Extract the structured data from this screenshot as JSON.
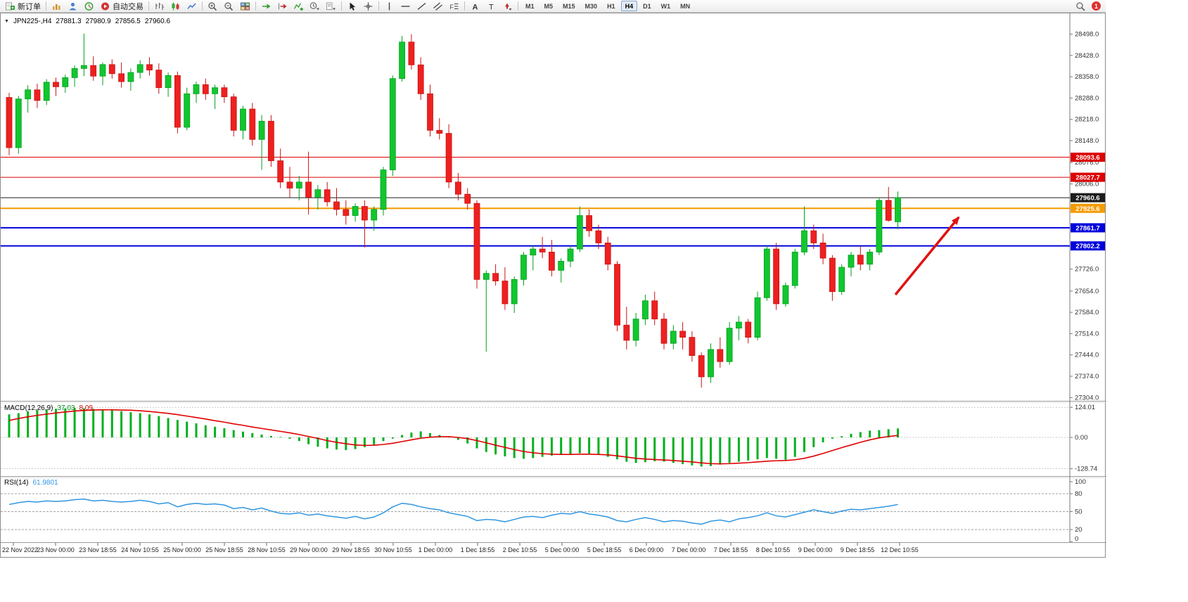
{
  "toolbar": {
    "new_order_label": "新订单",
    "autotrading_label": "自动交易",
    "icon_groups": {
      "charts": [
        "new-chart-icon",
        "profiles-icon",
        "market-watch-icon"
      ],
      "chart_types": [
        "bar-chart-icon",
        "candlestick-chart-icon",
        "line-chart-icon"
      ],
      "zoom": [
        "zoom-in-icon",
        "zoom-out-icon",
        "tile-windows-icon"
      ],
      "chart_tools": [
        "auto-scroll-icon",
        "chart-shift-icon",
        "indicators-add-icon",
        "periods-icon",
        "templates-icon"
      ],
      "pointer_tools": [
        "cursor-icon",
        "crosshair-icon"
      ],
      "line_tools": [
        "vertical-line-icon",
        "horizontal-line-icon",
        "trendline-icon",
        "channel-icon",
        "fibonacci-icon"
      ],
      "annotation_tools": [
        "text-icon",
        "label-icon",
        "arrows-icon"
      ]
    },
    "timeframes": [
      "M1",
      "M5",
      "M15",
      "M30",
      "H1",
      "H4",
      "D1",
      "W1",
      "MN"
    ],
    "active_timeframe": "H4",
    "notification_count": "1"
  },
  "chart_header": {
    "symbol_period": "JPN225-,H4",
    "open": "27881.3",
    "high": "27980.9",
    "low": "27856.5",
    "close": "27960.6"
  },
  "chart_data": {
    "type": "candlestick",
    "symbol": "JPN225-",
    "timeframe": "H4",
    "price_axis_ticks": [
      28498,
      28428,
      28358,
      28288,
      28218,
      28148,
      28076,
      28006,
      27726,
      27654,
      27584,
      27514,
      27444,
      27374,
      27304
    ],
    "levels": [
      {
        "price": 28093.6,
        "color": "#dd0000",
        "width": 1
      },
      {
        "price": 28027.7,
        "color": "#dd0000",
        "width": 1
      },
      {
        "price": 27960.6,
        "color": "#1c1c1c",
        "width": 1
      },
      {
        "price": 27925.6,
        "color": "#f59a00",
        "width": 2
      },
      {
        "price": 27861.7,
        "color": "#0000dd",
        "width": 2
      },
      {
        "price": 27802.2,
        "color": "#0000dd",
        "width": 2
      }
    ],
    "time_labels": [
      "22 Nov 2022",
      "23 Nov 00:00",
      "23 Nov 18:55",
      "24 Nov 10:55",
      "25 Nov 00:00",
      "25 Nov 18:55",
      "28 Nov 10:55",
      "29 Nov 00:00",
      "29 Nov 18:55",
      "30 Nov 10:55",
      "1 Dec 00:00",
      "1 Dec 18:55",
      "2 Dec 10:55",
      "5 Dec 00:00",
      "5 Dec 18:55",
      "6 Dec 09:00",
      "7 Dec 00:00",
      "7 Dec 18:55",
      "8 Dec 10:55",
      "9 Dec 00:00",
      "9 Dec 18:55",
      "12 Dec 10:55"
    ],
    "candles_ohlc": [
      [
        28290,
        28305,
        28100,
        28125
      ],
      [
        28125,
        28295,
        28105,
        28285
      ],
      [
        28285,
        28330,
        28240,
        28315
      ],
      [
        28315,
        28335,
        28255,
        28280
      ],
      [
        28280,
        28350,
        28265,
        28340
      ],
      [
        28340,
        28355,
        28295,
        28325
      ],
      [
        28325,
        28365,
        28305,
        28355
      ],
      [
        28355,
        28395,
        28325,
        28385
      ],
      [
        28385,
        28500,
        28360,
        28395
      ],
      [
        28395,
        28425,
        28345,
        28360
      ],
      [
        28360,
        28405,
        28330,
        28398
      ],
      [
        28398,
        28415,
        28352,
        28368
      ],
      [
        28368,
        28405,
        28322,
        28342
      ],
      [
        28342,
        28385,
        28312,
        28372
      ],
      [
        28372,
        28412,
        28352,
        28398
      ],
      [
        28398,
        28422,
        28362,
        28380
      ],
      [
        28380,
        28402,
        28302,
        28322
      ],
      [
        28322,
        28372,
        28292,
        28362
      ],
      [
        28362,
        28375,
        28172,
        28192
      ],
      [
        28192,
        28322,
        28182,
        28302
      ],
      [
        28302,
        28342,
        28272,
        28332
      ],
      [
        28332,
        28352,
        28282,
        28302
      ],
      [
        28302,
        28332,
        28252,
        28322
      ],
      [
        28322,
        28332,
        28272,
        28292
      ],
      [
        28292,
        28302,
        28162,
        28182
      ],
      [
        28182,
        28262,
        28152,
        28252
      ],
      [
        28252,
        28272,
        28132,
        28152
      ],
      [
        28152,
        28232,
        28052,
        28212
      ],
      [
        28212,
        28232,
        28062,
        28082
      ],
      [
        28082,
        28122,
        27992,
        28012
      ],
      [
        28012,
        28062,
        27962,
        27992
      ],
      [
        27992,
        28032,
        27952,
        28012
      ],
      [
        28012,
        28112,
        27905,
        27962
      ],
      [
        27962,
        28002,
        27922,
        27987
      ],
      [
        27987,
        28012,
        27932,
        27947
      ],
      [
        27947,
        27992,
        27902,
        27922
      ],
      [
        27922,
        27952,
        27872,
        27902
      ],
      [
        27902,
        27942,
        27882,
        27932
      ],
      [
        27932,
        27952,
        27797,
        27887
      ],
      [
        27887,
        27932,
        27852,
        27922
      ],
      [
        27922,
        28062,
        27902,
        28052
      ],
      [
        28052,
        28362,
        28032,
        28352
      ],
      [
        28352,
        28492,
        28342,
        28472
      ],
      [
        28472,
        28498,
        28382,
        28397
      ],
      [
        28397,
        28422,
        28282,
        28302
      ],
      [
        28302,
        28332,
        28162,
        28182
      ],
      [
        28182,
        28222,
        28152,
        28172
      ],
      [
        28172,
        28202,
        27992,
        28012
      ],
      [
        28012,
        28042,
        27952,
        27972
      ],
      [
        27972,
        27992,
        27922,
        27942
      ],
      [
        27942,
        27952,
        27662,
        27692
      ],
      [
        27692,
        27722,
        27455,
        27712
      ],
      [
        27712,
        27742,
        27672,
        27687
      ],
      [
        27687,
        27732,
        27592,
        27612
      ],
      [
        27612,
        27702,
        27582,
        27692
      ],
      [
        27692,
        27782,
        27672,
        27772
      ],
      [
        27772,
        27802,
        27722,
        27792
      ],
      [
        27792,
        27832,
        27762,
        27782
      ],
      [
        27782,
        27822,
        27702,
        27722
      ],
      [
        27722,
        27762,
        27682,
        27752
      ],
      [
        27752,
        27802,
        27732,
        27792
      ],
      [
        27792,
        27932,
        27782,
        27902
      ],
      [
        27902,
        27922,
        27832,
        27852
      ],
      [
        27852,
        27872,
        27792,
        27812
      ],
      [
        27812,
        27832,
        27722,
        27742
      ],
      [
        27742,
        27752,
        27522,
        27542
      ],
      [
        27542,
        27602,
        27462,
        27492
      ],
      [
        27492,
        27582,
        27472,
        27562
      ],
      [
        27562,
        27642,
        27542,
        27622
      ],
      [
        27622,
        27652,
        27542,
        27562
      ],
      [
        27562,
        27582,
        27462,
        27482
      ],
      [
        27482,
        27542,
        27462,
        27522
      ],
      [
        27522,
        27552,
        27462,
        27502
      ],
      [
        27502,
        27522,
        27422,
        27442
      ],
      [
        27442,
        27452,
        27337,
        27372
      ],
      [
        27372,
        27482,
        27352,
        27462
      ],
      [
        27462,
        27502,
        27402,
        27422
      ],
      [
        27422,
        27552,
        27412,
        27532
      ],
      [
        27532,
        27572,
        27492,
        27552
      ],
      [
        27552,
        27562,
        27482,
        27502
      ],
      [
        27502,
        27652,
        27492,
        27632
      ],
      [
        27632,
        27802,
        27622,
        27792
      ],
      [
        27792,
        27812,
        27592,
        27612
      ],
      [
        27612,
        27682,
        27602,
        27672
      ],
      [
        27672,
        27792,
        27662,
        27782
      ],
      [
        27782,
        27932,
        27772,
        27852
      ],
      [
        27852,
        27872,
        27792,
        27812
      ],
      [
        27812,
        27842,
        27742,
        27762
      ],
      [
        27762,
        27772,
        27622,
        27652
      ],
      [
        27652,
        27742,
        27642,
        27732
      ],
      [
        27732,
        27782,
        27702,
        27772
      ],
      [
        27772,
        27802,
        27722,
        27742
      ],
      [
        27742,
        27792,
        27722,
        27782
      ],
      [
        27782,
        27962,
        27772,
        27952
      ],
      [
        27952,
        27996,
        27882,
        27886
      ],
      [
        27881.3,
        27980.9,
        27856.5,
        27960.6
      ]
    ],
    "macd": {
      "label": "MACD(12,26,9)",
      "main_value": "37.03",
      "signal_value": "8.09",
      "axis_values": [
        124.01,
        0,
        -128.74
      ],
      "histogram": [
        95,
        100,
        108,
        112,
        115,
        118,
        120,
        122,
        120,
        118,
        115,
        112,
        108,
        104,
        100,
        95,
        88,
        80,
        72,
        65,
        58,
        50,
        44,
        38,
        30,
        24,
        18,
        12,
        6,
        2,
        -5,
        -15,
        -28,
        -38,
        -45,
        -50,
        -52,
        -48,
        -40,
        -30,
        -15,
        -5,
        10,
        20,
        25,
        18,
        10,
        2,
        -10,
        -25,
        -45,
        -60,
        -70,
        -78,
        -85,
        -88,
        -85,
        -80,
        -75,
        -72,
        -70,
        -65,
        -68,
        -72,
        -80,
        -90,
        -100,
        -105,
        -102,
        -98,
        -100,
        -105,
        -110,
        -115,
        -120,
        -118,
        -112,
        -105,
        -100,
        -95,
        -90,
        -85,
        -88,
        -92,
        -80,
        -60,
        -40,
        -20,
        -5,
        5,
        15,
        22,
        28,
        30,
        34,
        37.03
      ],
      "signal": [
        70,
        78,
        85,
        91,
        96,
        101,
        105,
        109,
        111,
        113,
        114,
        114,
        113,
        112,
        110,
        107,
        103,
        99,
        94,
        88,
        82,
        76,
        69,
        63,
        56,
        50,
        43,
        37,
        31,
        25,
        19,
        12,
        4,
        -4,
        -13,
        -20,
        -26,
        -31,
        -33,
        -32,
        -29,
        -24,
        -17,
        -10,
        -3,
        1,
        3,
        3,
        0,
        -5,
        -13,
        -22,
        -32,
        -41,
        -50,
        -58,
        -63,
        -67,
        -69,
        -70,
        -70,
        -69,
        -69,
        -70,
        -72,
        -76,
        -81,
        -86,
        -89,
        -91,
        -93,
        -95,
        -98,
        -101,
        -105,
        -108,
        -109,
        -108,
        -106,
        -104,
        -101,
        -98,
        -96,
        -95,
        -92,
        -86,
        -77,
        -66,
        -54,
        -42,
        -31,
        -20,
        -10,
        -2,
        4,
        8.09
      ]
    },
    "rsi": {
      "label": "RSI(14)",
      "value": "61.9801",
      "axis_values": [
        100,
        80,
        50,
        20,
        0
      ],
      "level_lines": [
        80,
        50,
        20
      ],
      "values": [
        62,
        65,
        67,
        66,
        68,
        67,
        68,
        70,
        71,
        68,
        69,
        67,
        66,
        67,
        69,
        67,
        63,
        65,
        58,
        62,
        64,
        62,
        63,
        61,
        55,
        57,
        53,
        56,
        51,
        47,
        46,
        48,
        44,
        46,
        43,
        41,
        39,
        42,
        38,
        41,
        48,
        58,
        64,
        62,
        58,
        55,
        53,
        48,
        45,
        42,
        35,
        37,
        36,
        33,
        37,
        41,
        42,
        40,
        44,
        47,
        46,
        50,
        46,
        44,
        41,
        35,
        33,
        37,
        40,
        37,
        33,
        35,
        34,
        31,
        29,
        34,
        36,
        33,
        38,
        40,
        43,
        48,
        43,
        41,
        45,
        49,
        53,
        50,
        47,
        51,
        54,
        53,
        55,
        57,
        59,
        61.98
      ]
    },
    "arrow": {
      "from": [
        1272,
        400
      ],
      "to": [
        1362,
        290
      ],
      "color": "#e01212"
    }
  }
}
